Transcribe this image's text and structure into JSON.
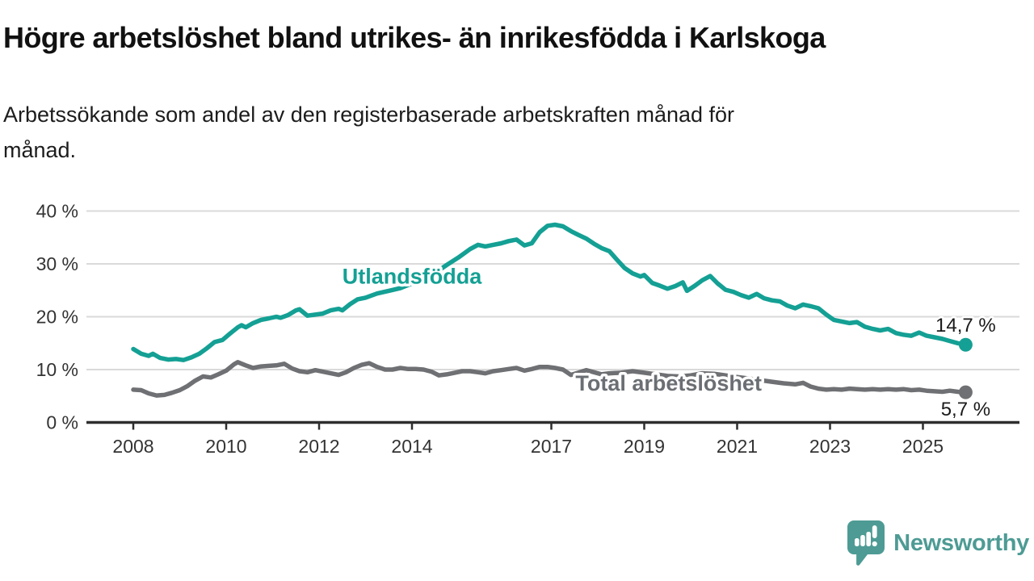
{
  "header": {
    "title": "Högre arbetslöshet bland utrikes- än inrikesfödda i Karlskoga",
    "subtitle_lines": [
      "Arbetssökande som andel av den registerbaserade arbetskraften månad för",
      "månad."
    ]
  },
  "chart_data": {
    "type": "line",
    "unit": "%",
    "grid": true,
    "xlim": [
      2007.4,
      2026.2
    ],
    "ylim": [
      0,
      42
    ],
    "x_ticks": [
      2008,
      2010,
      2012,
      2014,
      2017,
      2019,
      2021,
      2023,
      2025
    ],
    "x_tick_labels": [
      "2008",
      "2010",
      "2012",
      "2014",
      "2017",
      "2019",
      "2021",
      "2023",
      "2025"
    ],
    "y_ticks": [
      0,
      10,
      20,
      30,
      40
    ],
    "y_tick_labels": [
      "0 %",
      "10 %",
      "20 %",
      "30 %",
      "40 %"
    ],
    "colors": {
      "grid": "#dadada",
      "axis": "#2e2e2e",
      "tick_text": "#333333",
      "value_text": "#1a1a1a"
    },
    "series": [
      {
        "name": "Utlandsfödda",
        "color": "#14A094",
        "end_label": "14,7 %",
        "last_value": 14.7,
        "points": [
          [
            2008.0,
            13.9
          ],
          [
            2008.17,
            13.0
          ],
          [
            2008.33,
            12.6
          ],
          [
            2008.42,
            13.0
          ],
          [
            2008.58,
            12.2
          ],
          [
            2008.75,
            11.9
          ],
          [
            2008.92,
            12.0
          ],
          [
            2009.08,
            11.8
          ],
          [
            2009.25,
            12.3
          ],
          [
            2009.42,
            13.0
          ],
          [
            2009.58,
            14.0
          ],
          [
            2009.75,
            15.2
          ],
          [
            2009.92,
            15.6
          ],
          [
            2010.08,
            16.8
          ],
          [
            2010.25,
            18.0
          ],
          [
            2010.33,
            18.4
          ],
          [
            2010.42,
            18.0
          ],
          [
            2010.58,
            18.8
          ],
          [
            2010.75,
            19.4
          ],
          [
            2010.92,
            19.7
          ],
          [
            2011.08,
            20.0
          ],
          [
            2011.17,
            19.8
          ],
          [
            2011.33,
            20.3
          ],
          [
            2011.5,
            21.2
          ],
          [
            2011.58,
            21.4
          ],
          [
            2011.75,
            20.2
          ],
          [
            2011.92,
            20.4
          ],
          [
            2012.08,
            20.6
          ],
          [
            2012.25,
            21.2
          ],
          [
            2012.42,
            21.5
          ],
          [
            2012.5,
            21.2
          ],
          [
            2012.67,
            22.4
          ],
          [
            2012.83,
            23.3
          ],
          [
            2013.0,
            23.6
          ],
          [
            2013.25,
            24.4
          ],
          [
            2013.5,
            24.9
          ],
          [
            2013.75,
            25.4
          ],
          [
            2014.0,
            26.3
          ],
          [
            2014.25,
            27.4
          ],
          [
            2014.5,
            28.3
          ],
          [
            2014.75,
            29.8
          ],
          [
            2015.0,
            31.2
          ],
          [
            2015.25,
            32.8
          ],
          [
            2015.42,
            33.6
          ],
          [
            2015.58,
            33.3
          ],
          [
            2015.75,
            33.6
          ],
          [
            2015.92,
            33.9
          ],
          [
            2016.08,
            34.3
          ],
          [
            2016.25,
            34.6
          ],
          [
            2016.42,
            33.5
          ],
          [
            2016.58,
            33.9
          ],
          [
            2016.75,
            36.0
          ],
          [
            2016.92,
            37.2
          ],
          [
            2017.08,
            37.4
          ],
          [
            2017.25,
            37.1
          ],
          [
            2017.42,
            36.2
          ],
          [
            2017.58,
            35.5
          ],
          [
            2017.75,
            34.8
          ],
          [
            2017.92,
            33.8
          ],
          [
            2018.08,
            33.0
          ],
          [
            2018.25,
            32.4
          ],
          [
            2018.42,
            30.7
          ],
          [
            2018.58,
            29.2
          ],
          [
            2018.75,
            28.2
          ],
          [
            2018.92,
            27.6
          ],
          [
            2019.0,
            27.9
          ],
          [
            2019.17,
            26.4
          ],
          [
            2019.33,
            25.9
          ],
          [
            2019.5,
            25.3
          ],
          [
            2019.67,
            25.8
          ],
          [
            2019.83,
            26.5
          ],
          [
            2019.92,
            24.9
          ],
          [
            2020.08,
            25.8
          ],
          [
            2020.25,
            26.9
          ],
          [
            2020.42,
            27.7
          ],
          [
            2020.58,
            26.3
          ],
          [
            2020.75,
            25.1
          ],
          [
            2020.92,
            24.7
          ],
          [
            2021.08,
            24.1
          ],
          [
            2021.25,
            23.6
          ],
          [
            2021.42,
            24.3
          ],
          [
            2021.58,
            23.5
          ],
          [
            2021.75,
            23.1
          ],
          [
            2021.92,
            22.9
          ],
          [
            2022.08,
            22.1
          ],
          [
            2022.25,
            21.6
          ],
          [
            2022.42,
            22.3
          ],
          [
            2022.58,
            22.0
          ],
          [
            2022.75,
            21.6
          ],
          [
            2022.92,
            20.4
          ],
          [
            2023.08,
            19.4
          ],
          [
            2023.25,
            19.1
          ],
          [
            2023.42,
            18.8
          ],
          [
            2023.58,
            19.0
          ],
          [
            2023.75,
            18.1
          ],
          [
            2023.92,
            17.7
          ],
          [
            2024.08,
            17.4
          ],
          [
            2024.25,
            17.7
          ],
          [
            2024.42,
            16.9
          ],
          [
            2024.58,
            16.6
          ],
          [
            2024.75,
            16.4
          ],
          [
            2024.92,
            17.0
          ],
          [
            2025.08,
            16.4
          ],
          [
            2025.25,
            16.1
          ],
          [
            2025.42,
            15.8
          ],
          [
            2025.58,
            15.4
          ],
          [
            2025.75,
            15.0
          ],
          [
            2025.92,
            14.7
          ]
        ]
      },
      {
        "name": "Total arbetslöshet",
        "color": "#6F7073",
        "end_label": "5,7 %",
        "last_value": 5.7,
        "points": [
          [
            2008.0,
            6.2
          ],
          [
            2008.17,
            6.1
          ],
          [
            2008.33,
            5.5
          ],
          [
            2008.5,
            5.1
          ],
          [
            2008.67,
            5.2
          ],
          [
            2008.83,
            5.6
          ],
          [
            2009.0,
            6.1
          ],
          [
            2009.17,
            6.9
          ],
          [
            2009.33,
            7.9
          ],
          [
            2009.5,
            8.7
          ],
          [
            2009.67,
            8.5
          ],
          [
            2009.83,
            9.1
          ],
          [
            2010.0,
            9.8
          ],
          [
            2010.17,
            11.0
          ],
          [
            2010.25,
            11.4
          ],
          [
            2010.42,
            10.8
          ],
          [
            2010.58,
            10.3
          ],
          [
            2010.75,
            10.6
          ],
          [
            2010.92,
            10.7
          ],
          [
            2011.08,
            10.8
          ],
          [
            2011.25,
            11.1
          ],
          [
            2011.42,
            10.2
          ],
          [
            2011.58,
            9.7
          ],
          [
            2011.75,
            9.5
          ],
          [
            2011.92,
            9.9
          ],
          [
            2012.08,
            9.6
          ],
          [
            2012.25,
            9.3
          ],
          [
            2012.42,
            9.0
          ],
          [
            2012.58,
            9.5
          ],
          [
            2012.75,
            10.3
          ],
          [
            2012.92,
            10.9
          ],
          [
            2013.08,
            11.2
          ],
          [
            2013.25,
            10.5
          ],
          [
            2013.42,
            10.0
          ],
          [
            2013.58,
            10.0
          ],
          [
            2013.75,
            10.3
          ],
          [
            2013.92,
            10.1
          ],
          [
            2014.08,
            10.1
          ],
          [
            2014.25,
            10.0
          ],
          [
            2014.42,
            9.6
          ],
          [
            2014.58,
            8.9
          ],
          [
            2014.75,
            9.1
          ],
          [
            2014.92,
            9.4
          ],
          [
            2015.08,
            9.7
          ],
          [
            2015.25,
            9.7
          ],
          [
            2015.42,
            9.5
          ],
          [
            2015.58,
            9.3
          ],
          [
            2015.75,
            9.7
          ],
          [
            2015.92,
            9.9
          ],
          [
            2016.08,
            10.1
          ],
          [
            2016.25,
            10.3
          ],
          [
            2016.42,
            9.8
          ],
          [
            2016.58,
            10.1
          ],
          [
            2016.75,
            10.5
          ],
          [
            2016.92,
            10.5
          ],
          [
            2017.08,
            10.3
          ],
          [
            2017.25,
            10.0
          ],
          [
            2017.42,
            9.0
          ],
          [
            2017.58,
            9.4
          ],
          [
            2017.75,
            9.9
          ],
          [
            2017.92,
            9.5
          ],
          [
            2018.08,
            9.1
          ],
          [
            2018.25,
            9.3
          ],
          [
            2018.5,
            9.4
          ],
          [
            2018.75,
            9.7
          ],
          [
            2019.0,
            9.4
          ],
          [
            2019.25,
            9.1
          ],
          [
            2019.5,
            8.8
          ],
          [
            2019.75,
            8.7
          ],
          [
            2020.0,
            8.9
          ],
          [
            2020.25,
            9.3
          ],
          [
            2020.5,
            9.2
          ],
          [
            2020.75,
            8.9
          ],
          [
            2021.0,
            8.6
          ],
          [
            2021.25,
            8.3
          ],
          [
            2021.5,
            8.0
          ],
          [
            2021.75,
            7.7
          ],
          [
            2022.0,
            7.4
          ],
          [
            2022.25,
            7.2
          ],
          [
            2022.42,
            7.5
          ],
          [
            2022.58,
            6.8
          ],
          [
            2022.75,
            6.4
          ],
          [
            2022.92,
            6.2
          ],
          [
            2023.08,
            6.3
          ],
          [
            2023.25,
            6.2
          ],
          [
            2023.42,
            6.4
          ],
          [
            2023.58,
            6.3
          ],
          [
            2023.75,
            6.2
          ],
          [
            2023.92,
            6.3
          ],
          [
            2024.08,
            6.2
          ],
          [
            2024.25,
            6.3
          ],
          [
            2024.42,
            6.2
          ],
          [
            2024.58,
            6.3
          ],
          [
            2024.75,
            6.1
          ],
          [
            2024.92,
            6.2
          ],
          [
            2025.08,
            6.0
          ],
          [
            2025.25,
            5.9
          ],
          [
            2025.42,
            5.8
          ],
          [
            2025.58,
            6.0
          ],
          [
            2025.75,
            5.8
          ],
          [
            2025.92,
            5.7
          ]
        ]
      }
    ],
    "annotations": [
      {
        "text": "Utlandsfödda",
        "year": 2014.0,
        "value": 27.6,
        "anchor": "middle",
        "color": "#14A094"
      },
      {
        "text": "Total arbetslöshet",
        "year": 2017.52,
        "value": 7.4,
        "anchor": "start",
        "color": "#6b6f73"
      }
    ]
  },
  "footer": {
    "brand": "Newsworthy",
    "logo_color": "#4D9B94"
  }
}
